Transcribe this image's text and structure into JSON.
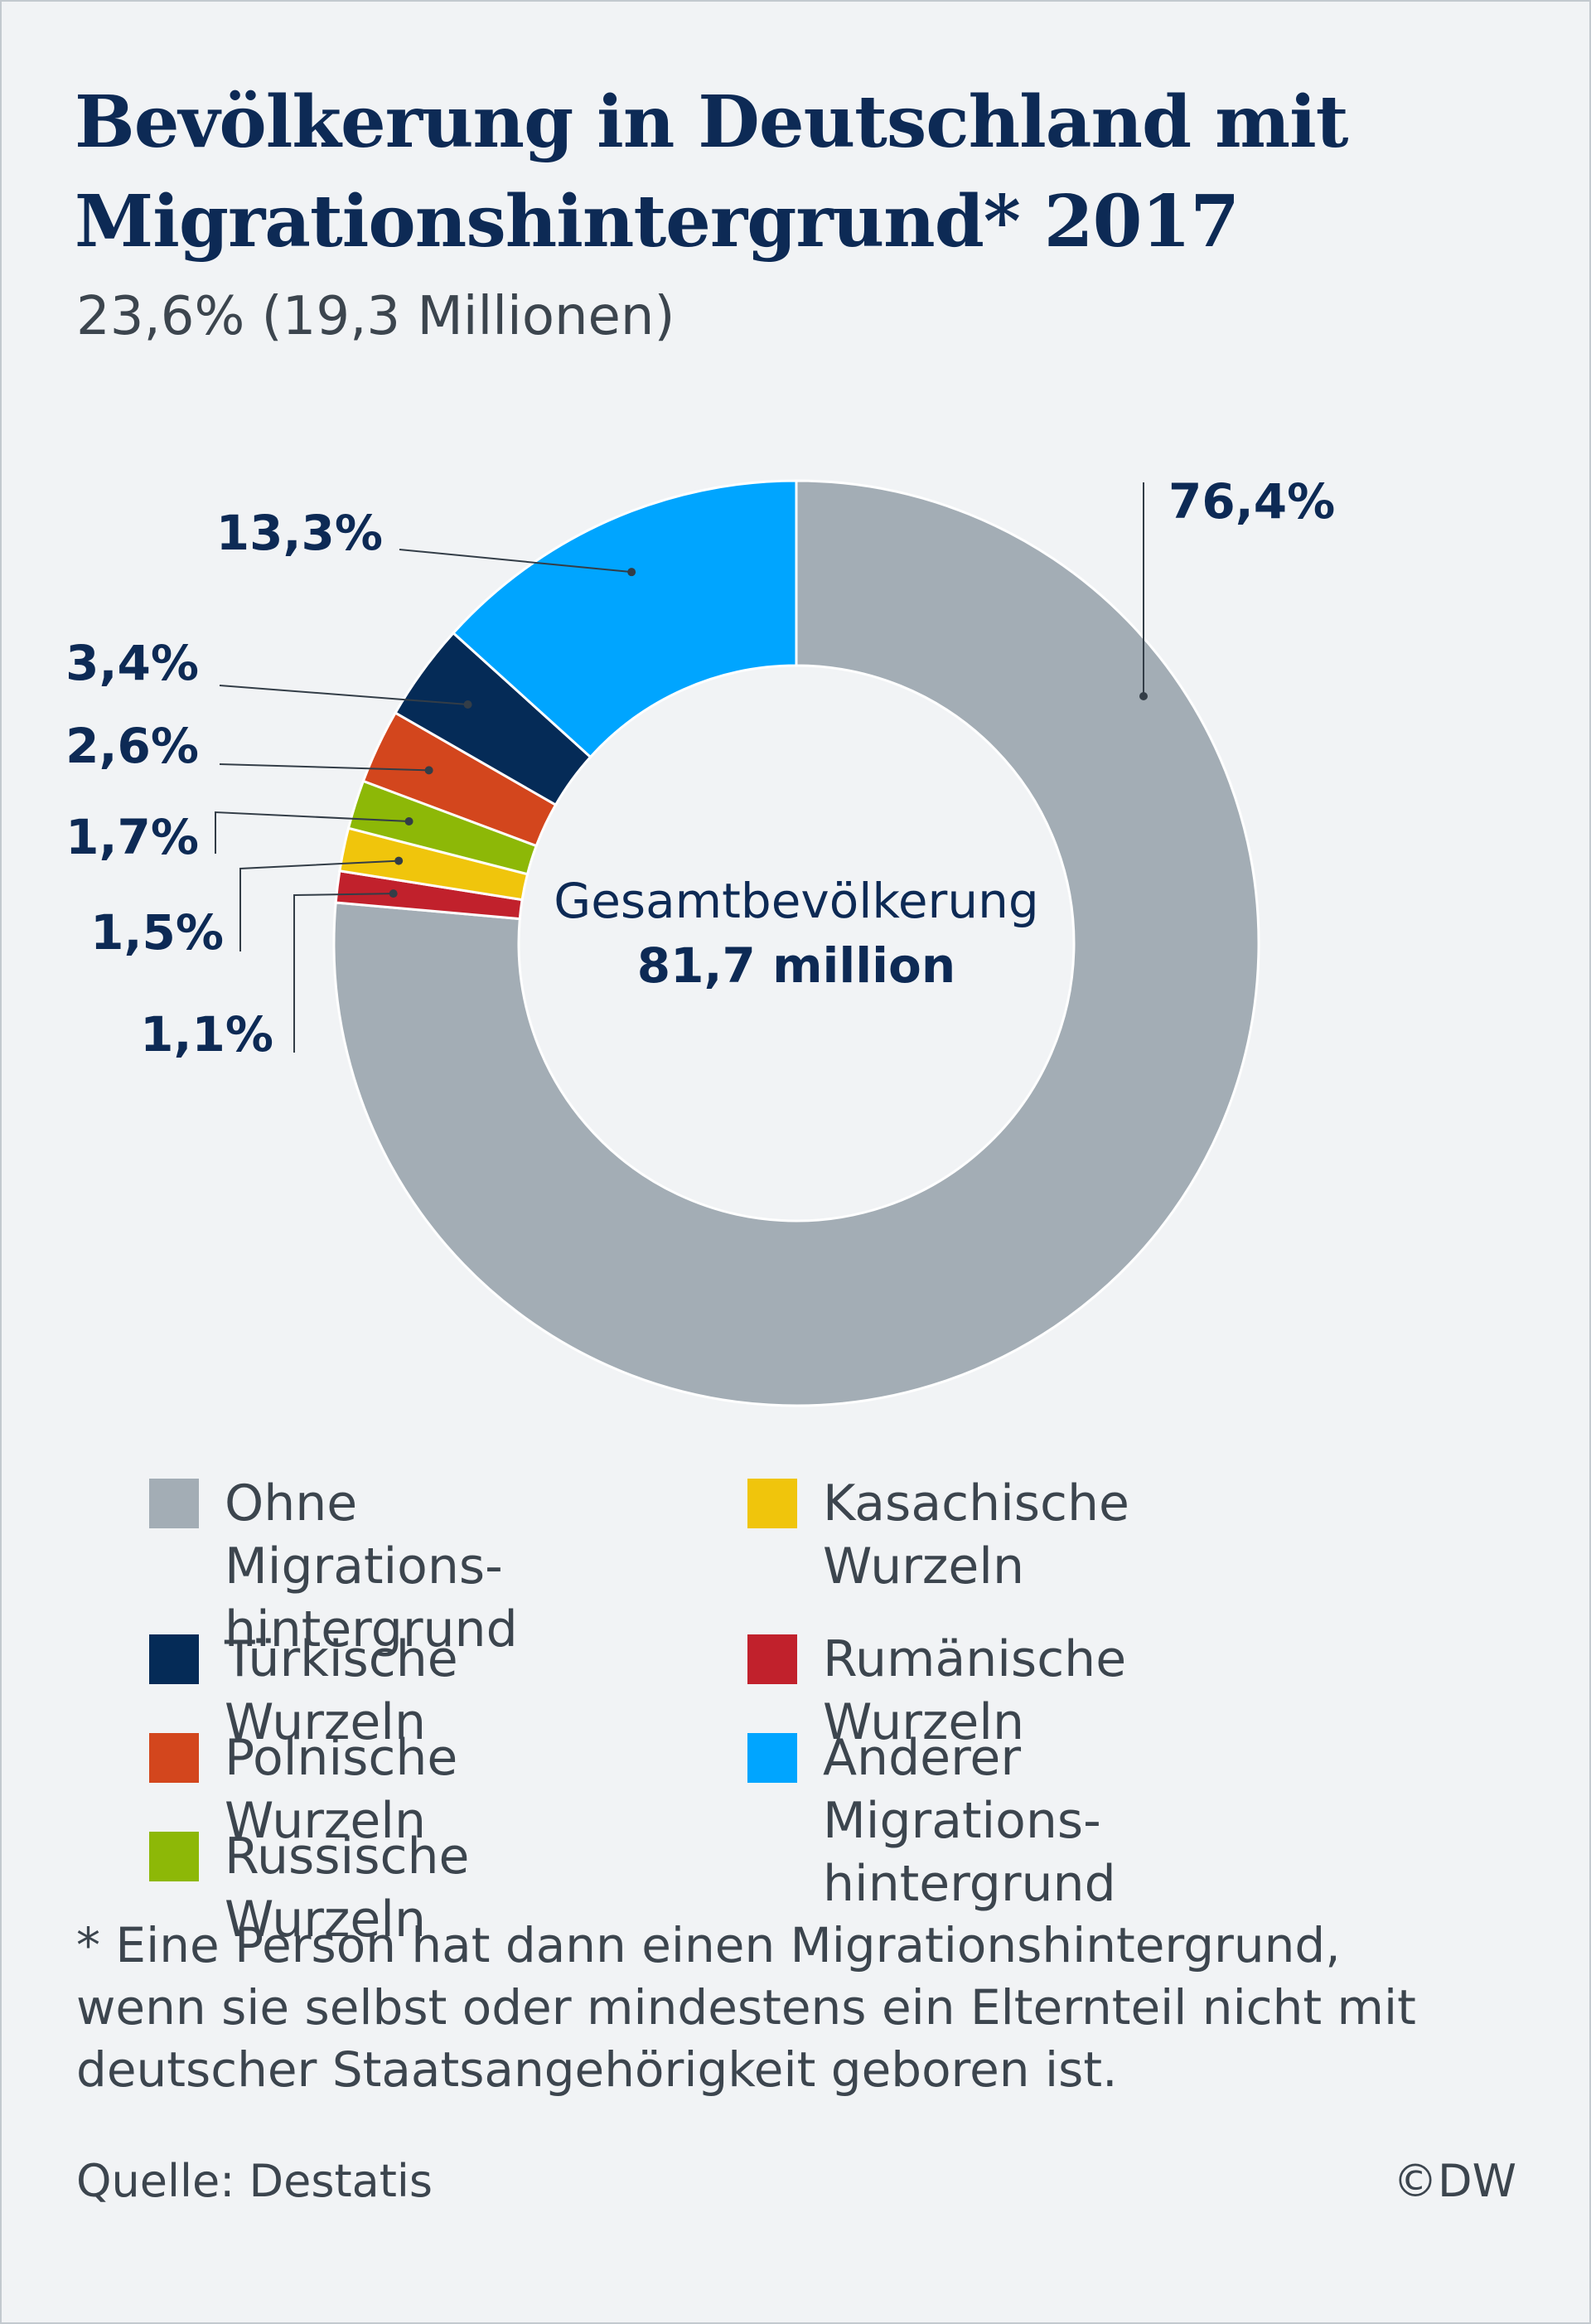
{
  "header": {
    "title_line1": "Bevölkerung in Deutschland mit",
    "title_line2": "Migrationshintergrund* 2017",
    "subtitle": "23,6% (19,3 Millionen)"
  },
  "center": {
    "label": "Gesamtbevölkerung",
    "value": "81,7 million"
  },
  "colors": {
    "title": "#0d2a55",
    "text": "#3c454e",
    "background": "#f1f3f5"
  },
  "chart_data": {
    "type": "pie",
    "title": "Bevölkerung in Deutschland mit Migrationshintergrund* 2017",
    "subtitle": "23,6% (19,3 Millionen)",
    "center_text": [
      "Gesamtbevölkerung",
      "81,7 million"
    ],
    "legend_position": "bottom",
    "slices": [
      {
        "name": "Ohne Migrations-hintergrund",
        "value": 76.4,
        "label": "76,4%",
        "color": "#a3adb5"
      },
      {
        "name": "Rumänische Wurzeln",
        "value": 1.1,
        "label": "1,1%",
        "color": "#c1212c"
      },
      {
        "name": "Kasachische Wurzeln",
        "value": 1.5,
        "label": "1,5%",
        "color": "#f0c50c"
      },
      {
        "name": "Russische Wurzeln",
        "value": 1.7,
        "label": "1,7%",
        "color": "#8db807"
      },
      {
        "name": "Polnische Wurzeln",
        "value": 2.6,
        "label": "2,6%",
        "color": "#d3461d"
      },
      {
        "name": "Türkische Wurzeln",
        "value": 3.4,
        "label": "3,4%",
        "color": "#052b57"
      },
      {
        "name": "Anderer Migrations-hintergrund",
        "value": 13.3,
        "label": "13,3%",
        "color": "#00a5ff"
      }
    ]
  },
  "legend": [
    {
      "line1": "Ohne Migrations-",
      "line2": "hintergrund",
      "color": "#a3adb5"
    },
    {
      "line1": "Türkische Wurzeln",
      "line2": "",
      "color": "#052b57"
    },
    {
      "line1": "Polnische Wurzeln",
      "line2": "",
      "color": "#d3461d"
    },
    {
      "line1": "Russische Wurzeln",
      "line2": "",
      "color": "#8db807"
    },
    {
      "line1": "Kasachische Wurzeln",
      "line2": "",
      "color": "#f0c50c"
    },
    {
      "line1": "Rumänische Wurzeln",
      "line2": "",
      "color": "#c1212c"
    },
    {
      "line1": "Anderer Migrations-",
      "line2": "hintergrund",
      "color": "#00a5ff"
    }
  ],
  "footnote": {
    "line1": "* Eine Person hat dann einen Migrationshintergrund,",
    "line2": "wenn sie selbst oder mindestens ein Elternteil nicht mit",
    "line3": "deutscher Staatsangehörigkeit geboren ist."
  },
  "footer": {
    "source": "Quelle: Destatis",
    "copyright": "©DW"
  }
}
